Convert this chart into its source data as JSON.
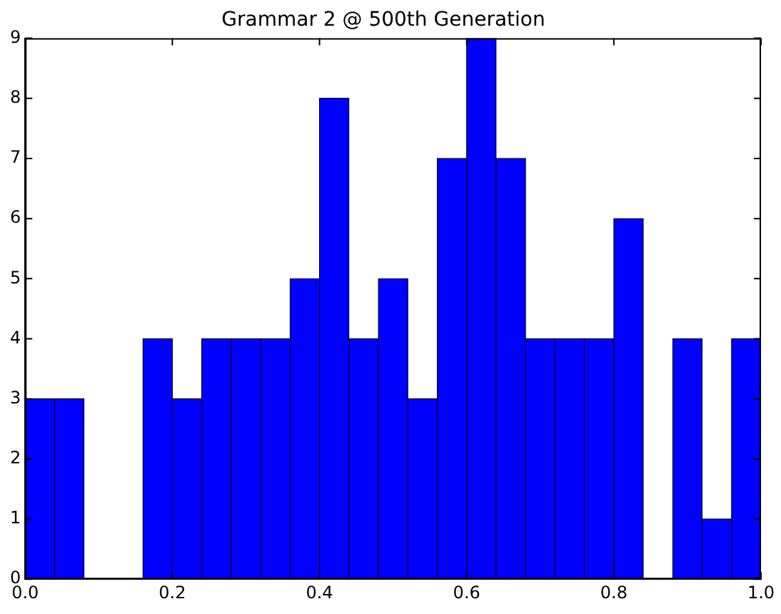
{
  "chart_data": {
    "type": "histogram",
    "title": "Grammar 2 @ 500th Generation",
    "bins": [
      0,
      0.04,
      0.08,
      0.12,
      0.16,
      0.2,
      0.24,
      0.28,
      0.32,
      0.36,
      0.4,
      0.44,
      0.48,
      0.52,
      0.56,
      0.6,
      0.64,
      0.68,
      0.72,
      0.76,
      0.8,
      0.84,
      0.88,
      0.92,
      0.96,
      1.0
    ],
    "values": [
      3,
      3,
      0,
      0,
      4,
      3,
      4,
      4,
      4,
      5,
      8,
      4,
      5,
      3,
      7,
      9,
      7,
      4,
      4,
      4,
      6,
      0,
      4,
      1,
      4
    ],
    "color": "#0000ff",
    "xlim": [
      0,
      1
    ],
    "xticks": [
      {
        "value": 0,
        "label": "0.0"
      },
      {
        "value": 0.2,
        "label": "0.2"
      },
      {
        "value": 0.4,
        "label": "0.4"
      },
      {
        "value": 0.6,
        "label": "0.6"
      },
      {
        "value": 0.8,
        "label": "0.8"
      },
      {
        "value": 1,
        "label": "1.0"
      }
    ],
    "ylim": [
      0,
      9
    ],
    "yticks": [
      0,
      1,
      2,
      3,
      4,
      5,
      6,
      7,
      8,
      9
    ],
    "grid": false,
    "legend": false
  }
}
